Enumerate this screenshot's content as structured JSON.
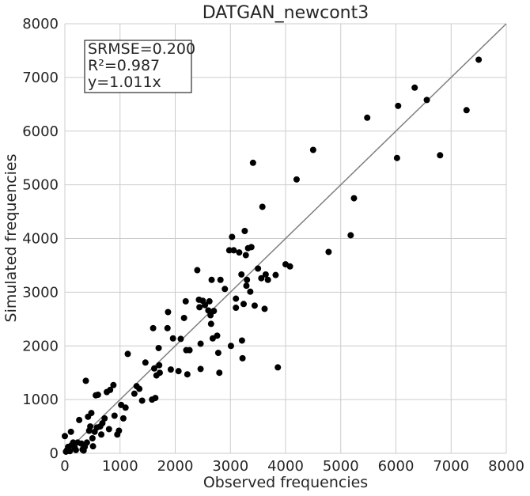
{
  "chart_data": {
    "type": "scatter",
    "title": "DATGAN_newcont3",
    "xlabel": "Observed frequencies",
    "ylabel": "Simulated frequencies",
    "xlim": [
      0,
      8000
    ],
    "ylim": [
      0,
      8000
    ],
    "xticks": [
      "0",
      "1000",
      "2000",
      "3000",
      "4000",
      "5000",
      "6000",
      "7000",
      "8000"
    ],
    "yticks": [
      "0",
      "1000",
      "2000",
      "3000",
      "4000",
      "5000",
      "6000",
      "7000",
      "8000"
    ],
    "grid": true,
    "identity_line": {
      "from": [
        0,
        0
      ],
      "to": [
        8000,
        8000
      ],
      "color": "#808080"
    },
    "stats": [
      "SRMSE=0.200",
      "R²=0.987",
      "y=1.011x"
    ],
    "marker_color": "#000000",
    "points": [
      [
        0,
        320
      ],
      [
        20,
        30
      ],
      [
        40,
        60
      ],
      [
        60,
        120
      ],
      [
        90,
        40
      ],
      [
        110,
        400
      ],
      [
        120,
        150
      ],
      [
        150,
        200
      ],
      [
        180,
        100
      ],
      [
        200,
        60
      ],
      [
        230,
        200
      ],
      [
        260,
        620
      ],
      [
        300,
        180
      ],
      [
        320,
        70
      ],
      [
        340,
        50
      ],
      [
        360,
        120
      ],
      [
        380,
        1350
      ],
      [
        400,
        200
      ],
      [
        420,
        680
      ],
      [
        440,
        420
      ],
      [
        460,
        500
      ],
      [
        480,
        750
      ],
      [
        500,
        280
      ],
      [
        510,
        130
      ],
      [
        540,
        400
      ],
      [
        560,
        1080
      ],
      [
        580,
        480
      ],
      [
        600,
        1090
      ],
      [
        640,
        500
      ],
      [
        660,
        350
      ],
      [
        680,
        560
      ],
      [
        720,
        650
      ],
      [
        760,
        1140
      ],
      [
        800,
        450
      ],
      [
        820,
        1180
      ],
      [
        880,
        1270
      ],
      [
        900,
        700
      ],
      [
        950,
        350
      ],
      [
        980,
        420
      ],
      [
        1020,
        900
      ],
      [
        1060,
        650
      ],
      [
        1100,
        850
      ],
      [
        1140,
        1850
      ],
      [
        1260,
        1110
      ],
      [
        1300,
        1250
      ],
      [
        1350,
        1200
      ],
      [
        1400,
        980
      ],
      [
        1460,
        1690
      ],
      [
        1580,
        1000
      ],
      [
        1600,
        2330
      ],
      [
        1620,
        1580
      ],
      [
        1640,
        1030
      ],
      [
        1660,
        1450
      ],
      [
        1700,
        1960
      ],
      [
        1710,
        1640
      ],
      [
        1720,
        1500
      ],
      [
        1860,
        2330
      ],
      [
        1870,
        2630
      ],
      [
        1920,
        1560
      ],
      [
        1960,
        2140
      ],
      [
        2060,
        1530
      ],
      [
        2100,
        2130
      ],
      [
        2160,
        2520
      ],
      [
        2190,
        2830
      ],
      [
        2200,
        1920
      ],
      [
        2220,
        1470
      ],
      [
        2260,
        1920
      ],
      [
        2400,
        3410
      ],
      [
        2430,
        2860
      ],
      [
        2440,
        2720
      ],
      [
        2460,
        2040
      ],
      [
        2460,
        1570
      ],
      [
        2500,
        2840
      ],
      [
        2540,
        2760
      ],
      [
        2600,
        2660
      ],
      [
        2620,
        2830
      ],
      [
        2640,
        2570
      ],
      [
        2650,
        2410
      ],
      [
        2660,
        3230
      ],
      [
        2680,
        2140
      ],
      [
        2700,
        2650
      ],
      [
        2760,
        2190
      ],
      [
        2780,
        1870
      ],
      [
        2800,
        1500
      ],
      [
        2820,
        3230
      ],
      [
        2900,
        3060
      ],
      [
        2980,
        3780
      ],
      [
        3010,
        2000
      ],
      [
        3030,
        4030
      ],
      [
        3060,
        3780
      ],
      [
        3100,
        2710
      ],
      [
        3100,
        2880
      ],
      [
        3160,
        3740
      ],
      [
        3200,
        3330
      ],
      [
        3210,
        2100
      ],
      [
        3220,
        1770
      ],
      [
        3240,
        2780
      ],
      [
        3260,
        4140
      ],
      [
        3280,
        3690
      ],
      [
        3290,
        3120
      ],
      [
        3300,
        3230
      ],
      [
        3320,
        3820
      ],
      [
        3360,
        3010
      ],
      [
        3380,
        3840
      ],
      [
        3410,
        5410
      ],
      [
        3440,
        2750
      ],
      [
        3500,
        3440
      ],
      [
        3560,
        3260
      ],
      [
        3580,
        4590
      ],
      [
        3620,
        2690
      ],
      [
        3640,
        3330
      ],
      [
        3680,
        3230
      ],
      [
        3820,
        3320
      ],
      [
        3860,
        1600
      ],
      [
        4000,
        3520
      ],
      [
        4080,
        3480
      ],
      [
        4200,
        5100
      ],
      [
        4500,
        5650
      ],
      [
        4780,
        3750
      ],
      [
        5180,
        4060
      ],
      [
        5240,
        4750
      ],
      [
        5480,
        6250
      ],
      [
        6020,
        5500
      ],
      [
        6040,
        6470
      ],
      [
        6340,
        6810
      ],
      [
        6560,
        6580
      ],
      [
        6800,
        5550
      ],
      [
        7280,
        6390
      ],
      [
        7500,
        7330
      ]
    ]
  }
}
